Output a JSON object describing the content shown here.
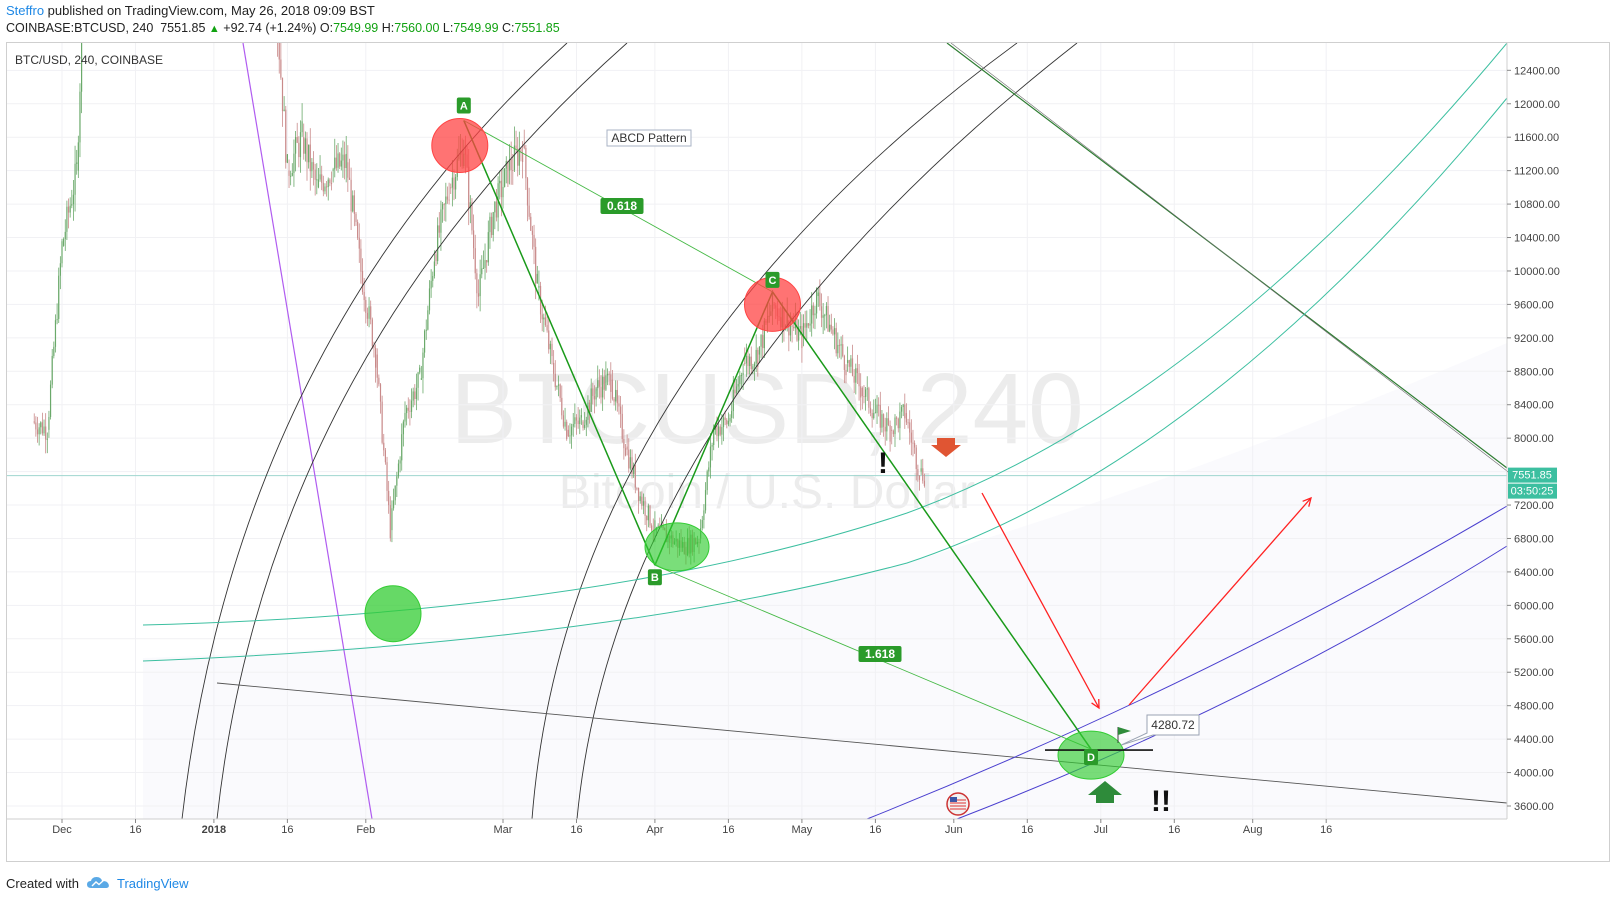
{
  "header": {
    "author": "Steffro",
    "published_text": " published on TradingView.com, May 26, 2018 09:09 BST",
    "symbol": "COINBASE:BTCUSD, 240",
    "last": "7551.85",
    "change": "+92.74 (+1.24%)",
    "open_label": "O:",
    "open": "7549.99",
    "high_label": "H:",
    "high": "7560.00",
    "low_label": "L:",
    "low": "7549.99",
    "close_label": "C:",
    "close": "7551.85"
  },
  "chart": {
    "symbol_label": "BTC/USD, 240, COINBASE",
    "watermark_main": "BTCUSD, 240",
    "watermark_sub": "Bitcoin / U.S. Dollar",
    "note": "ABCD Pattern",
    "current_price_tag": "7551.85",
    "countdown_tag": "03:50:25",
    "target_price_label": "4280.72",
    "colors": {
      "bullish": "#33cc33",
      "bearish": "#ff4444",
      "fib_line": "#45b945",
      "abcd_line": "#1a9a1a",
      "projection_arrow": "#ff2222",
      "fan_teal": "#3cbfa0",
      "fan_blue": "#4a3fcf",
      "arc_dark": "#333333",
      "purple_line": "#b05cf0"
    }
  },
  "chart_data": {
    "type": "line",
    "title": "BTC/USD, 240, COINBASE",
    "y_ticks": [
      3600,
      4000,
      4400,
      4800,
      5200,
      5600,
      6000,
      6400,
      6800,
      7200,
      7600,
      8000,
      8400,
      8800,
      9200,
      9600,
      10000,
      10400,
      10800,
      11200,
      11600,
      12000,
      12400
    ],
    "y_tick_labels": [
      "3600.00",
      "4000.00",
      "4400.00",
      "4800.00",
      "5200.00",
      "5600.00",
      "6000.00",
      "6400.00",
      "6800.00",
      "7200.00",
      "7600.00",
      "8000.00",
      "8400.00",
      "8800.00",
      "9200.00",
      "9600.00",
      "10000.00",
      "10400.00",
      "10800.00",
      "11200.00",
      "11600.00",
      "12000.00",
      "12400.00"
    ],
    "x_tick_labels": [
      "Dec",
      "16",
      "2018",
      "16",
      "Feb",
      "Mar",
      "16",
      "Apr",
      "16",
      "May",
      "16",
      "Jun",
      "16",
      "Jul",
      "16",
      "Aug",
      "16"
    ],
    "x_tick_dates": [
      "2017-12-01",
      "2017-12-16",
      "2018-01-01",
      "2018-01-16",
      "2018-02-01",
      "2018-03-01",
      "2018-03-16",
      "2018-04-01",
      "2018-04-16",
      "2018-05-01",
      "2018-05-16",
      "2018-06-01",
      "2018-06-16",
      "2018-07-01",
      "2018-07-16",
      "2018-08-01",
      "2018-08-16"
    ],
    "ylim": [
      3400,
      12800
    ],
    "price_series_dates": [
      "2017-11-25",
      "2017-11-28",
      "2017-12-01",
      "2017-12-04",
      "2017-12-07",
      "2017-12-10",
      "2017-12-13",
      "2017-12-16",
      "2017-12-17",
      "2017-12-20",
      "2017-12-23",
      "2017-12-26",
      "2017-12-29",
      "2018-01-01",
      "2018-01-04",
      "2018-01-07",
      "2018-01-10",
      "2018-01-13",
      "2018-01-16",
      "2018-01-19",
      "2018-01-22",
      "2018-01-25",
      "2018-01-28",
      "2018-01-31",
      "2018-02-03",
      "2018-02-06",
      "2018-02-09",
      "2018-02-12",
      "2018-02-15",
      "2018-02-18",
      "2018-02-21",
      "2018-02-24",
      "2018-02-27",
      "2018-03-02",
      "2018-03-05",
      "2018-03-08",
      "2018-03-11",
      "2018-03-14",
      "2018-03-17",
      "2018-03-20",
      "2018-03-23",
      "2018-03-26",
      "2018-03-29",
      "2018-04-01",
      "2018-04-04",
      "2018-04-07",
      "2018-04-10",
      "2018-04-13",
      "2018-04-16",
      "2018-04-19",
      "2018-04-22",
      "2018-04-25",
      "2018-04-28",
      "2018-05-01",
      "2018-05-04",
      "2018-05-07",
      "2018-05-10",
      "2018-05-13",
      "2018-05-16",
      "2018-05-19",
      "2018-05-22",
      "2018-05-25",
      "2018-05-26"
    ],
    "price_series_values": [
      8200,
      8100,
      10300,
      11200,
      16000,
      15800,
      16500,
      19000,
      19200,
      16500,
      14000,
      15500,
      14300,
      13500,
      15500,
      16800,
      14500,
      13800,
      11200,
      11600,
      11000,
      11200,
      11300,
      10000,
      9000,
      6900,
      8300,
      8700,
      10200,
      11000,
      11500,
      9700,
      10700,
      11200,
      11500,
      9800,
      8900,
      8100,
      8200,
      8600,
      8700,
      7900,
      7300,
      6900,
      6800,
      6700,
      6800,
      8100,
      8200,
      8900,
      9000,
      9600,
      9400,
      9200,
      9700,
      9300,
      8900,
      8600,
      8300,
      8100,
      8300,
      7600,
      7551.85
    ],
    "series": [
      {
        "name": "ABCD",
        "x": [
          "2018-02-21",
          "2018-04-01",
          "2018-04-25",
          "2018-06-29"
        ],
        "y": [
          11800,
          6480,
          9750,
          4280.72
        ]
      }
    ],
    "annotations": [
      "ABCD Pattern",
      "0.618",
      "1.618",
      "A",
      "B",
      "C",
      "D",
      "4280.72"
    ],
    "last_price": 7551.85,
    "grid": true
  }
}
